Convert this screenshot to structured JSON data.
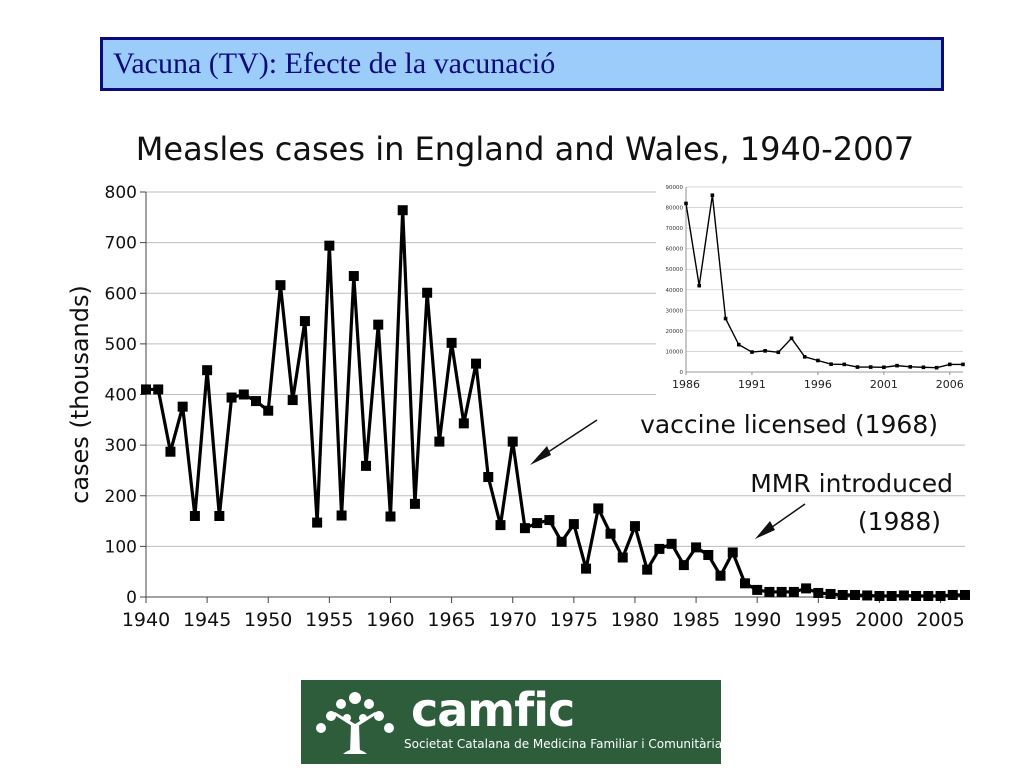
{
  "slide": {
    "title": "Vacuna (TV): Efecte de la vacunació"
  },
  "chart_data": [
    {
      "type": "line",
      "title": "Measles cases in England and Wales, 1940-2007",
      "ylabel": "cases (thousands)",
      "xlabel": "",
      "xlim": [
        1940,
        2007
      ],
      "ylim": [
        0,
        800
      ],
      "xticks": [
        "1940",
        "1945",
        "1950",
        "1955",
        "1960",
        "1965",
        "1970",
        "1975",
        "1980",
        "1985",
        "1990",
        "1995",
        "2000",
        "2005"
      ],
      "yticks": [
        "0",
        "100",
        "200",
        "300",
        "400",
        "500",
        "600",
        "700",
        "800"
      ],
      "grid": true,
      "color": "#000000",
      "x": [
        1940,
        1941,
        1942,
        1943,
        1944,
        1945,
        1946,
        1947,
        1948,
        1949,
        1950,
        1951,
        1952,
        1953,
        1954,
        1955,
        1956,
        1957,
        1958,
        1959,
        1960,
        1961,
        1962,
        1963,
        1964,
        1965,
        1966,
        1967,
        1968,
        1969,
        1970,
        1971,
        1972,
        1973,
        1974,
        1975,
        1976,
        1977,
        1978,
        1979,
        1980,
        1981,
        1982,
        1983,
        1984,
        1985,
        1986,
        1987,
        1988,
        1989,
        1990,
        1991,
        1992,
        1993,
        1994,
        1995,
        1996,
        1997,
        1998,
        1999,
        2000,
        2001,
        2002,
        2003,
        2004,
        2005,
        2006,
        2007
      ],
      "values": [
        410,
        410,
        287,
        376,
        160,
        448,
        160,
        394,
        400,
        387,
        368,
        616,
        389,
        545,
        147,
        694,
        161,
        634,
        259,
        538,
        159,
        764,
        184,
        601,
        307,
        502,
        343,
        461,
        237,
        142,
        307,
        136,
        146,
        152,
        109,
        144,
        56,
        175,
        125,
        78,
        140,
        54,
        95,
        105,
        63,
        98,
        83,
        42,
        88,
        27,
        14,
        10,
        10,
        10,
        17,
        8,
        6,
        4,
        4,
        3,
        2,
        2,
        3,
        2,
        2,
        2,
        4,
        4
      ],
      "annotations": [
        {
          "text": "vaccine licensed (1968)",
          "x": 1970,
          "y": 280
        },
        {
          "text": "MMR introduced",
          "x": 1988,
          "y": 110
        },
        {
          "text": "(1988)",
          "x": 1988,
          "y": 110
        }
      ]
    },
    {
      "type": "line",
      "title": "",
      "xlim": [
        1986,
        2007
      ],
      "ylim": [
        0,
        90000
      ],
      "xticks": [
        "1986",
        "1991",
        "1996",
        "2001",
        "2006"
      ],
      "yticks": [
        "0",
        "10000",
        "20000",
        "30000",
        "40000",
        "50000",
        "60000",
        "70000",
        "80000",
        "90000"
      ],
      "grid": true,
      "color": "#000000",
      "x": [
        1986,
        1987,
        1988,
        1989,
        1990,
        1991,
        1992,
        1993,
        1994,
        1995,
        1996,
        1997,
        1998,
        1999,
        2000,
        2001,
        2002,
        2003,
        2004,
        2005,
        2006,
        2007
      ],
      "values": [
        82000,
        42000,
        86000,
        26000,
        13300,
        9700,
        10300,
        9600,
        16400,
        7400,
        5600,
        3800,
        3700,
        2400,
        2400,
        2300,
        3100,
        2500,
        2300,
        2100,
        3700,
        3700
      ]
    }
  ],
  "logo": {
    "name": "camfic",
    "subtitle": "Societat Catalana de Medicina Familiar i Comunitària"
  }
}
